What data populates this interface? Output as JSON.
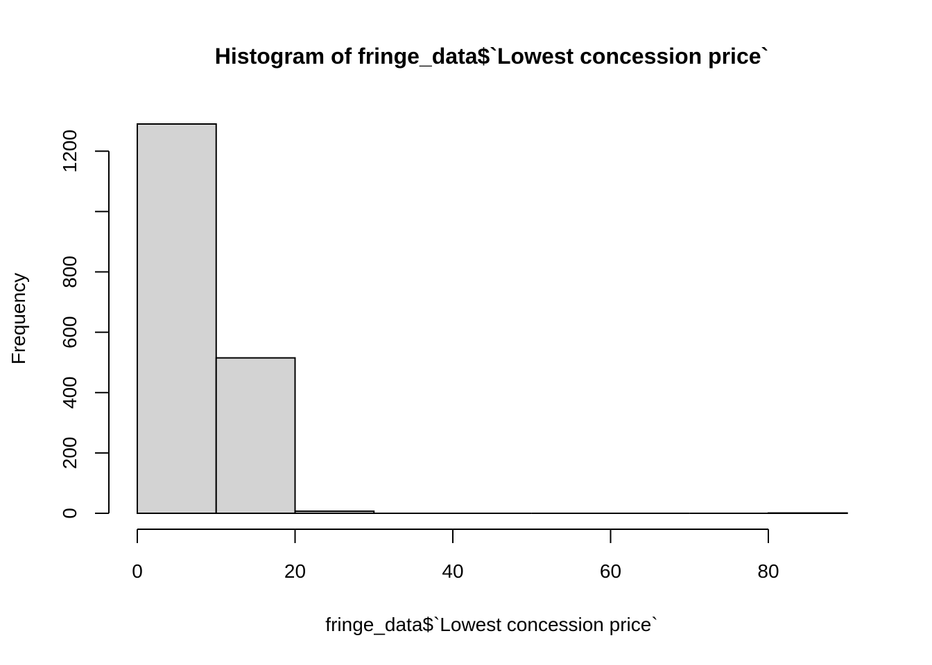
{
  "chart_data": {
    "type": "bar",
    "title": "Histogram of fringe_data$`Lowest concession price`",
    "xlabel": "fringe_data$`Lowest concession price`",
    "ylabel": "Frequency",
    "bins": [
      {
        "start": 0,
        "end": 10,
        "count": 1290
      },
      {
        "start": 10,
        "end": 20,
        "count": 515
      },
      {
        "start": 20,
        "end": 30,
        "count": 7
      },
      {
        "start": 30,
        "end": 40,
        "count": 0
      },
      {
        "start": 40,
        "end": 50,
        "count": 0
      },
      {
        "start": 50,
        "end": 60,
        "count": 0
      },
      {
        "start": 60,
        "end": 70,
        "count": 0
      },
      {
        "start": 70,
        "end": 80,
        "count": 0
      },
      {
        "start": 80,
        "end": 90,
        "count": 1
      }
    ],
    "xlim": [
      0,
      90
    ],
    "ylim": [
      0,
      1290
    ],
    "x_ticks": [
      0,
      20,
      40,
      60,
      80
    ],
    "y_ticks": [
      0,
      200,
      400,
      600,
      800,
      1000,
      1200
    ],
    "y_tick_labels": [
      "0",
      "200",
      "400",
      "600",
      "800",
      "",
      "1200"
    ],
    "bar_fill": "#d3d3d3",
    "bar_stroke": "#000000",
    "grid": false
  }
}
